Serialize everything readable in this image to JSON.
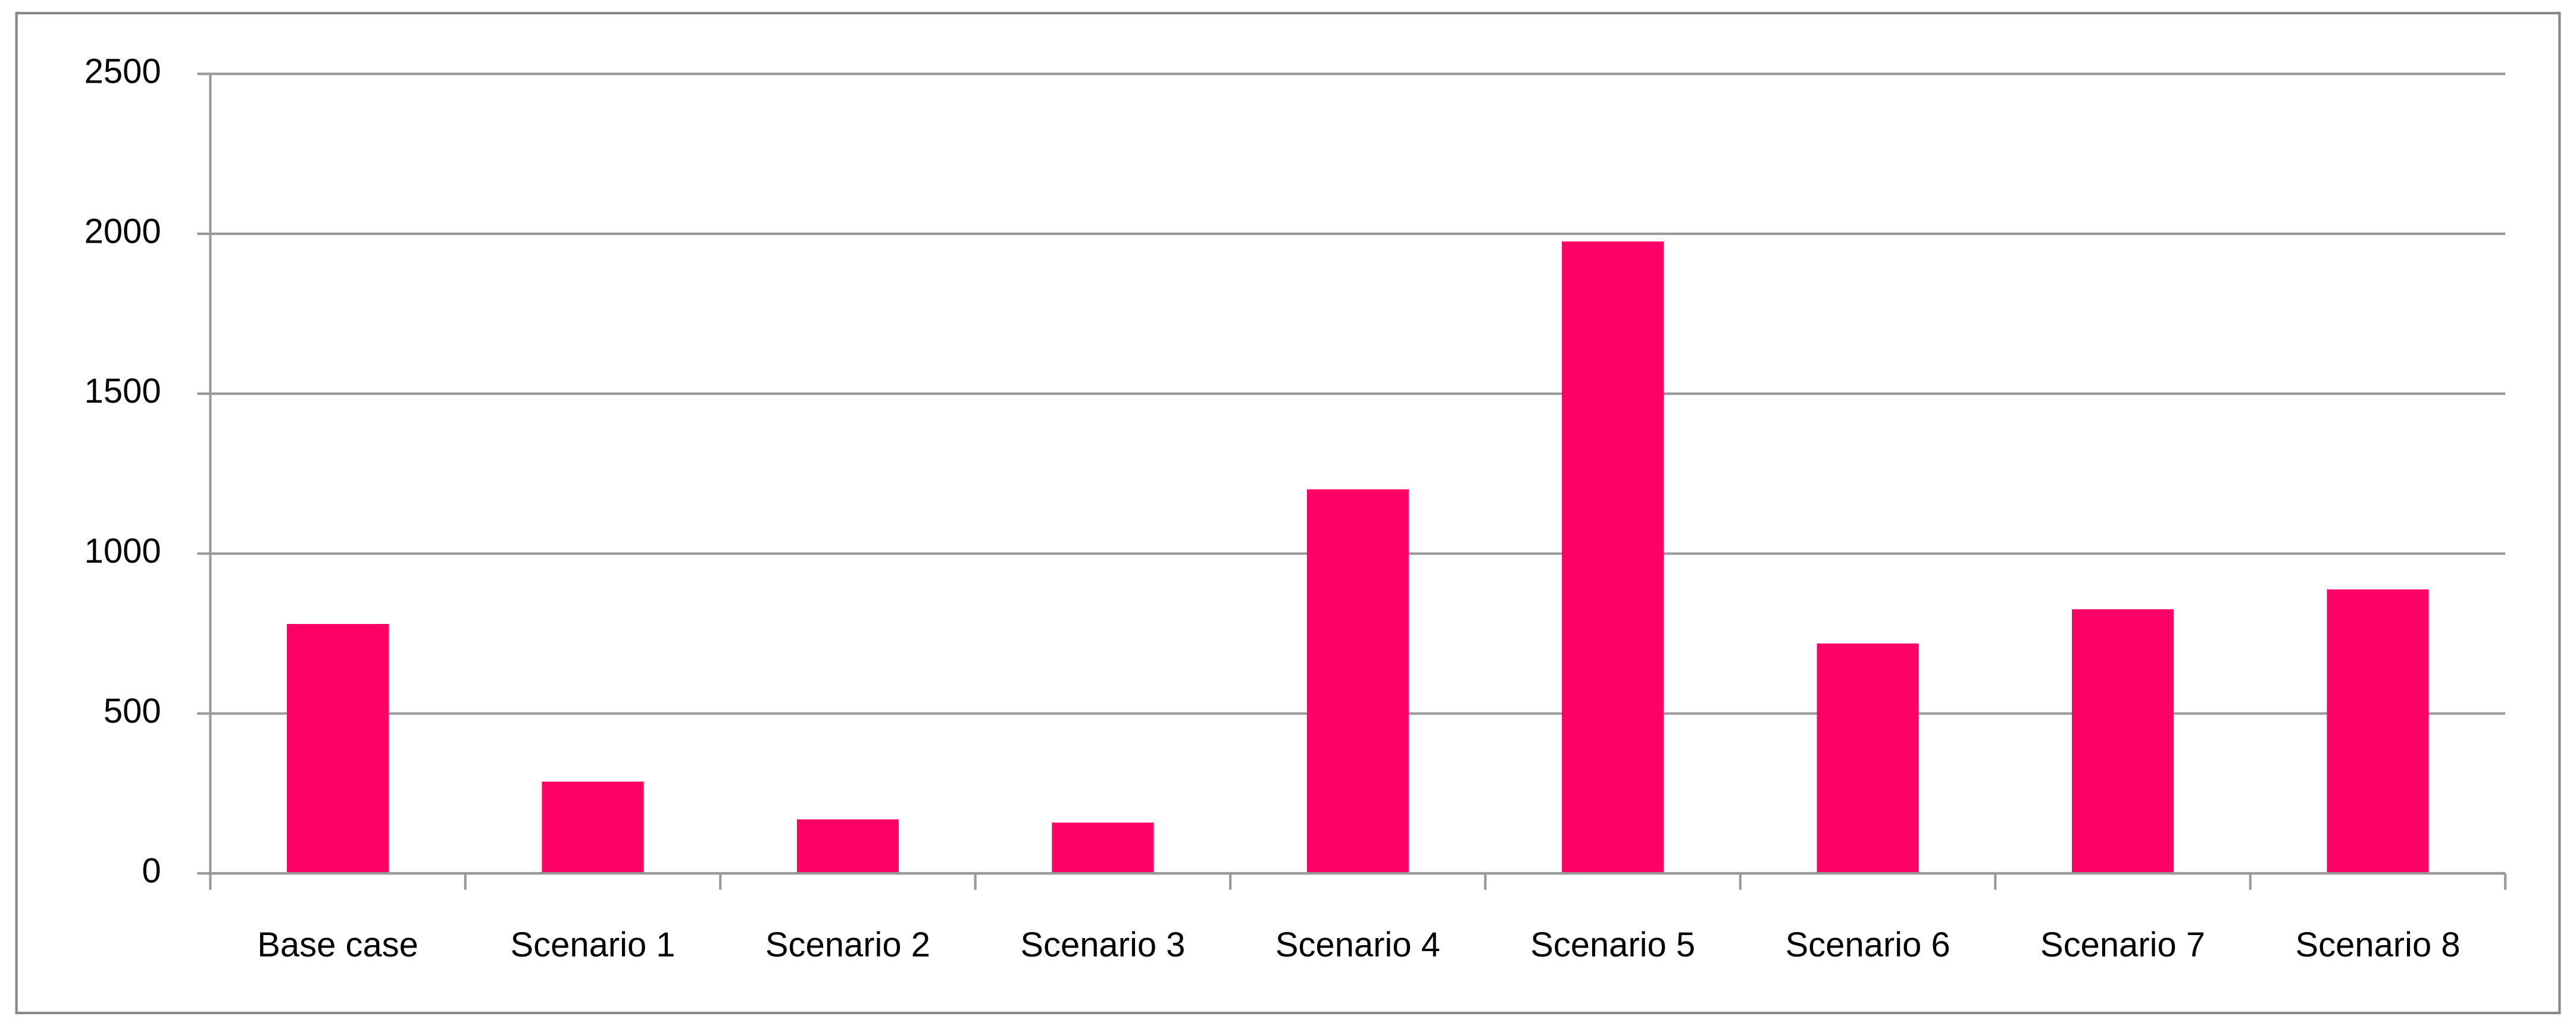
{
  "chart_data": {
    "type": "bar",
    "categories": [
      "Base case",
      "Scenario 1",
      "Scenario 2",
      "Scenario 3",
      "Scenario 4",
      "Scenario 5",
      "Scenario 6",
      "Scenario 7",
      "Scenario 8"
    ],
    "values": [
      780,
      287,
      169,
      159,
      1201,
      1976,
      719,
      826,
      888
    ],
    "color": "#ff0066",
    "ylim": [
      0,
      2500
    ],
    "yticks": [
      0,
      500,
      1000,
      1500,
      2000,
      2500
    ],
    "grid": true
  }
}
